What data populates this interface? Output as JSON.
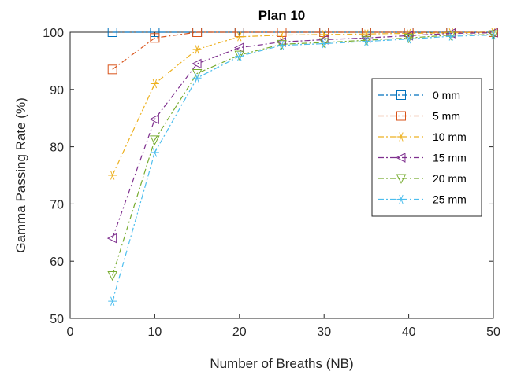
{
  "chart_data": {
    "type": "line",
    "title": "Plan 10",
    "xlabel": "Number of Breaths (NB)",
    "ylabel": "Gamma Passing Rate (%)",
    "xlim": [
      0,
      50
    ],
    "ylim": [
      50,
      100
    ],
    "xticks": [
      "0",
      "10",
      "20",
      "30",
      "40",
      "50"
    ],
    "yticks": [
      "50",
      "60",
      "70",
      "80",
      "90",
      "100"
    ],
    "grid": false,
    "legend_position": "right",
    "x": [
      5,
      10,
      15,
      20,
      25,
      30,
      35,
      40,
      45,
      50
    ],
    "series": [
      {
        "name": "0 mm",
        "color": "#0072BD",
        "marker": "square",
        "values": [
          100,
          100,
          100,
          100,
          100,
          100,
          100,
          100,
          100,
          100
        ]
      },
      {
        "name": "5 mm",
        "color": "#D95319",
        "marker": "square",
        "values": [
          93.5,
          99,
          100,
          100,
          100,
          100,
          100,
          100,
          100,
          100
        ]
      },
      {
        "name": "10 mm",
        "color": "#EDB120",
        "marker": "asterisk",
        "values": [
          75,
          91,
          97,
          99.2,
          99.5,
          99.6,
          99.7,
          99.8,
          99.9,
          100
        ]
      },
      {
        "name": "15 mm",
        "color": "#7E2F8E",
        "marker": "triangle-left",
        "values": [
          64,
          84.8,
          94.5,
          97.3,
          98.3,
          98.7,
          99,
          99.4,
          99.8,
          99.9
        ]
      },
      {
        "name": "20 mm",
        "color": "#77AC30",
        "marker": "triangle-down",
        "values": [
          57.5,
          81.2,
          92.8,
          96,
          97.9,
          98.2,
          98.6,
          99,
          99.5,
          99.6
        ]
      },
      {
        "name": "25 mm",
        "color": "#4DBEEE",
        "marker": "asterisk",
        "values": [
          53,
          79,
          92,
          95.8,
          97.7,
          98,
          98.4,
          98.8,
          99.3,
          99.5
        ]
      }
    ]
  }
}
